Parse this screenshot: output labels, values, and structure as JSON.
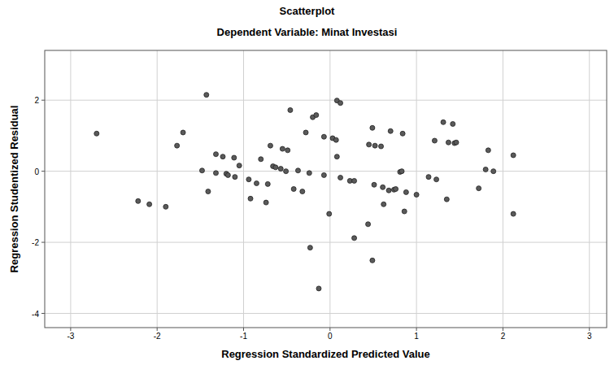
{
  "chart_data": {
    "type": "scatter",
    "title": "Scatterplot",
    "subtitle": "Dependent Variable: Minat Investasi",
    "x_label": "Regression Standardized Predicted Value",
    "y_label": "Regression Studentized Residual",
    "x": [
      -2.7,
      -1.77,
      -2.22,
      -2.09,
      -1.9,
      -1.7,
      -1.48,
      -1.43,
      -1.41,
      -1.32,
      -1.32,
      -1.24,
      -1.2,
      -1.18,
      -1.11,
      -1.1,
      -1.05,
      -0.92,
      -0.94,
      -0.85,
      -0.8,
      -0.74,
      -0.72,
      -0.69,
      -0.66,
      -0.63,
      -0.57,
      -0.55,
      -0.51,
      -0.46,
      -0.49,
      -0.42,
      -0.37,
      -0.32,
      -0.28,
      -0.24,
      -0.2,
      -0.16,
      -0.23,
      -0.13,
      -0.07,
      -0.07,
      -0.01,
      0.03,
      0.07,
      0.08,
      0.12,
      0.08,
      0.12,
      0.23,
      0.28,
      0.28,
      0.44,
      0.45,
      0.49,
      0.52,
      0.49,
      0.51,
      0.61,
      0.59,
      0.62,
      0.68,
      0.7,
      0.74,
      0.76,
      0.81,
      0.83,
      0.84,
      0.86,
      0.88,
      1.0,
      1.14,
      1.21,
      1.23,
      1.31,
      1.35,
      1.37,
      1.42,
      1.44,
      1.46,
      1.72,
      1.8,
      1.83,
      1.89,
      2.12,
      2.12
    ],
    "values": [
      1.06,
      0.72,
      -0.84,
      -0.93,
      -1.0,
      1.09,
      0.02,
      2.15,
      -0.57,
      0.48,
      -0.05,
      0.41,
      -0.07,
      -0.11,
      0.38,
      -0.16,
      0.16,
      -0.77,
      -0.23,
      -0.34,
      0.34,
      -0.88,
      -0.36,
      0.72,
      0.14,
      0.11,
      0.07,
      0.63,
      0.0,
      1.72,
      0.59,
      -0.5,
      0.02,
      -0.57,
      1.09,
      -0.05,
      1.52,
      1.58,
      -2.15,
      -3.3,
      -0.11,
      0.97,
      -1.2,
      0.93,
      0.88,
      1.99,
      1.92,
      0.41,
      -0.18,
      -0.27,
      -0.27,
      -1.88,
      -1.49,
      0.75,
      1.22,
      0.72,
      -2.51,
      -0.38,
      -0.45,
      0.7,
      -0.93,
      -0.54,
      1.13,
      -0.52,
      -0.5,
      -0.02,
      0.0,
      1.06,
      -1.13,
      -0.59,
      -0.66,
      -0.16,
      0.86,
      -0.23,
      1.38,
      -0.79,
      0.81,
      1.33,
      0.79,
      0.81,
      -0.48,
      0.05,
      0.59,
      0.0,
      0.45,
      -1.2
    ],
    "color": "#5a5a5a",
    "marker": "circle",
    "xlim": [
      -3.3,
      3.2
    ],
    "xticks": [
      -3,
      -2,
      -1,
      0,
      1,
      2,
      3
    ],
    "ylim": [
      -4.4,
      3.4
    ],
    "yticks": [
      -4,
      -2,
      0,
      2
    ],
    "grid": true
  }
}
